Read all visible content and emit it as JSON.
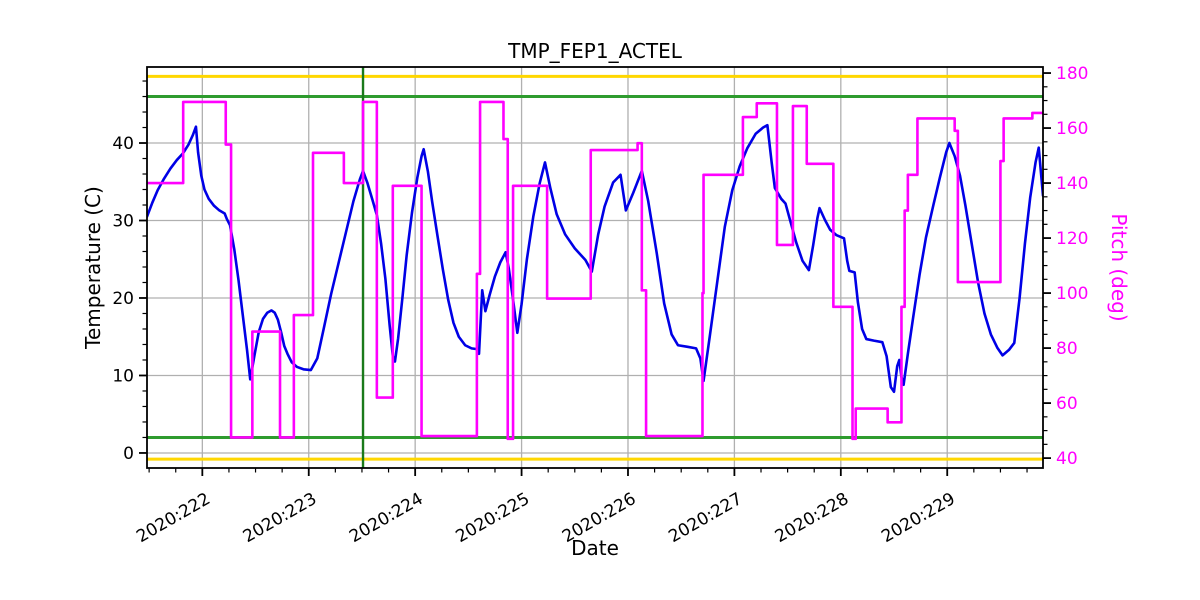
{
  "chart_data": {
    "type": "line",
    "title": "TMP_FEP1_ACTEL",
    "xlabel": "Date",
    "ylabel_left": "Temperature (C)",
    "ylabel_right": "Pitch (deg)",
    "x_axis": {
      "domain": [
        221.48,
        229.9
      ],
      "major_ticks": [
        222,
        223,
        224,
        225,
        226,
        227,
        228,
        229
      ],
      "tick_labels": [
        "2020:222",
        "2020:223",
        "2020:224",
        "2020:225",
        "2020:226",
        "2020:227",
        "2020:228",
        "2020:229"
      ],
      "minor_step": 0.25
    },
    "y_left": {
      "domain": [
        -1.94,
        49.81
      ],
      "major_ticks": [
        0,
        10,
        20,
        30,
        40
      ],
      "minor_step": 2,
      "color": "#000000"
    },
    "y_right": {
      "domain": [
        36.4,
        182.2
      ],
      "major_ticks": [
        40,
        60,
        80,
        100,
        120,
        140,
        160,
        180
      ],
      "minor_step": 5,
      "color": "#ff00ff"
    },
    "grid": {
      "show": true,
      "color": "#b0b0b0"
    },
    "colors": {
      "temperature": "#0000e6",
      "pitch": "#ff00ff",
      "yellow_limit": "#ffd700",
      "green_limit": "#2e9b2e",
      "vline": "#1a7a1a"
    },
    "limit_lines": [
      {
        "name": "yellow-high-limit",
        "axis": "left",
        "value": 48.6,
        "color": "#ffd700"
      },
      {
        "name": "yellow-low-limit",
        "axis": "left",
        "value": -0.8,
        "color": "#ffd700"
      },
      {
        "name": "green-high-limit",
        "axis": "left",
        "value": 46.0,
        "color": "#2e9b2e"
      },
      {
        "name": "green-low-limit",
        "axis": "left",
        "value": 2.0,
        "color": "#2e9b2e"
      }
    ],
    "vline": {
      "x": 223.51,
      "color": "#1a7a1a"
    },
    "series": [
      {
        "name": "temperature",
        "axis": "left",
        "style": "line",
        "color": "#0000e6",
        "points": [
          [
            221.48,
            30.5
          ],
          [
            221.53,
            32.3
          ],
          [
            221.58,
            33.9
          ],
          [
            221.64,
            35.4
          ],
          [
            221.7,
            36.7
          ],
          [
            221.76,
            37.8
          ],
          [
            221.82,
            38.7
          ],
          [
            221.87,
            39.8
          ],
          [
            221.91,
            41.0
          ],
          [
            221.94,
            42.1
          ],
          [
            221.96,
            38.8
          ],
          [
            221.99,
            35.8
          ],
          [
            222.02,
            34.0
          ],
          [
            222.06,
            32.8
          ],
          [
            222.11,
            31.9
          ],
          [
            222.16,
            31.3
          ],
          [
            222.21,
            30.9
          ],
          [
            222.23,
            30.2
          ],
          [
            222.26,
            29.4
          ],
          [
            222.3,
            26.3
          ],
          [
            222.34,
            22.3
          ],
          [
            222.38,
            17.8
          ],
          [
            222.42,
            13.3
          ],
          [
            222.45,
            9.5
          ],
          [
            222.49,
            12.6
          ],
          [
            222.53,
            15.6
          ],
          [
            222.57,
            17.3
          ],
          [
            222.61,
            18.1
          ],
          [
            222.65,
            18.4
          ],
          [
            222.68,
            18.1
          ],
          [
            222.71,
            17.2
          ],
          [
            222.74,
            15.6
          ],
          [
            222.77,
            13.8
          ],
          [
            222.8,
            12.8
          ],
          [
            222.84,
            11.7
          ],
          [
            222.89,
            11.1
          ],
          [
            222.95,
            10.8
          ],
          [
            223.02,
            10.7
          ],
          [
            223.08,
            12.2
          ],
          [
            223.14,
            16.0
          ],
          [
            223.21,
            20.5
          ],
          [
            223.28,
            24.5
          ],
          [
            223.35,
            28.5
          ],
          [
            223.42,
            32.5
          ],
          [
            223.48,
            35.3
          ],
          [
            223.51,
            36.4
          ],
          [
            223.55,
            34.9
          ],
          [
            223.6,
            32.6
          ],
          [
            223.64,
            30.7
          ],
          [
            223.68,
            27.0
          ],
          [
            223.72,
            22.5
          ],
          [
            223.76,
            16.5
          ],
          [
            223.79,
            12.5
          ],
          [
            223.81,
            11.8
          ],
          [
            223.84,
            14.8
          ],
          [
            223.88,
            20.0
          ],
          [
            223.92,
            25.5
          ],
          [
            223.97,
            31.0
          ],
          [
            224.02,
            35.5
          ],
          [
            224.06,
            38.3
          ],
          [
            224.08,
            39.2
          ],
          [
            224.12,
            36.3
          ],
          [
            224.16,
            32.4
          ],
          [
            224.21,
            28.0
          ],
          [
            224.26,
            23.7
          ],
          [
            224.31,
            19.8
          ],
          [
            224.36,
            16.8
          ],
          [
            224.41,
            15.0
          ],
          [
            224.47,
            13.9
          ],
          [
            224.53,
            13.5
          ],
          [
            224.58,
            13.4
          ],
          [
            224.6,
            12.8
          ],
          [
            224.63,
            21.0
          ],
          [
            224.66,
            18.3
          ],
          [
            224.7,
            20.4
          ],
          [
            224.75,
            22.8
          ],
          [
            224.8,
            24.6
          ],
          [
            224.85,
            25.9
          ],
          [
            224.88,
            23.8
          ],
          [
            224.92,
            19.8
          ],
          [
            224.96,
            15.5
          ],
          [
            225.0,
            19.2
          ],
          [
            225.05,
            25.0
          ],
          [
            225.11,
            30.5
          ],
          [
            225.17,
            34.8
          ],
          [
            225.22,
            37.5
          ],
          [
            225.27,
            34.2
          ],
          [
            225.33,
            30.8
          ],
          [
            225.41,
            28.2
          ],
          [
            225.5,
            26.4
          ],
          [
            225.6,
            24.9
          ],
          [
            225.66,
            23.4
          ],
          [
            225.72,
            28.2
          ],
          [
            225.78,
            31.8
          ],
          [
            225.86,
            34.9
          ],
          [
            225.93,
            35.9
          ],
          [
            225.98,
            31.3
          ],
          [
            226.05,
            33.6
          ],
          [
            226.13,
            36.4
          ],
          [
            226.19,
            32.5
          ],
          [
            226.27,
            25.8
          ],
          [
            226.34,
            19.3
          ],
          [
            226.41,
            15.3
          ],
          [
            226.47,
            13.9
          ],
          [
            226.56,
            13.7
          ],
          [
            226.64,
            13.5
          ],
          [
            226.68,
            12.2
          ],
          [
            226.71,
            9.3
          ],
          [
            226.77,
            15.2
          ],
          [
            226.84,
            22.2
          ],
          [
            226.91,
            29.2
          ],
          [
            226.98,
            33.9
          ],
          [
            227.05,
            37.0
          ],
          [
            227.12,
            39.3
          ],
          [
            227.2,
            41.2
          ],
          [
            227.27,
            42.0
          ],
          [
            227.31,
            42.3
          ],
          [
            227.35,
            37.5
          ],
          [
            227.38,
            34.2
          ],
          [
            227.44,
            32.8
          ],
          [
            227.48,
            32.2
          ],
          [
            227.53,
            29.7
          ],
          [
            227.58,
            27.2
          ],
          [
            227.64,
            24.8
          ],
          [
            227.7,
            23.6
          ],
          [
            227.74,
            26.8
          ],
          [
            227.78,
            30.3
          ],
          [
            227.8,
            31.6
          ],
          [
            227.85,
            30.1
          ],
          [
            227.9,
            28.8
          ],
          [
            227.96,
            28.1
          ],
          [
            228.03,
            27.7
          ],
          [
            228.06,
            24.8
          ],
          [
            228.08,
            23.5
          ],
          [
            228.13,
            23.3
          ],
          [
            228.16,
            19.5
          ],
          [
            228.2,
            16.0
          ],
          [
            228.24,
            14.7
          ],
          [
            228.31,
            14.5
          ],
          [
            228.39,
            14.3
          ],
          [
            228.43,
            12.5
          ],
          [
            228.47,
            8.5
          ],
          [
            228.5,
            7.9
          ],
          [
            228.53,
            11.2
          ],
          [
            228.55,
            12.0
          ],
          [
            228.57,
            9.8
          ],
          [
            228.59,
            8.8
          ],
          [
            228.63,
            12.8
          ],
          [
            228.68,
            17.5
          ],
          [
            228.74,
            23.0
          ],
          [
            228.8,
            27.8
          ],
          [
            228.87,
            32.0
          ],
          [
            228.93,
            35.5
          ],
          [
            228.99,
            38.8
          ],
          [
            229.02,
            40.0
          ],
          [
            229.07,
            38.3
          ],
          [
            229.12,
            35.8
          ],
          [
            229.17,
            32.0
          ],
          [
            229.23,
            27.0
          ],
          [
            229.29,
            22.0
          ],
          [
            229.35,
            18.0
          ],
          [
            229.41,
            15.3
          ],
          [
            229.47,
            13.6
          ],
          [
            229.52,
            12.6
          ],
          [
            229.58,
            13.3
          ],
          [
            229.63,
            14.2
          ],
          [
            229.68,
            20.0
          ],
          [
            229.73,
            27.0
          ],
          [
            229.78,
            33.0
          ],
          [
            229.83,
            37.5
          ],
          [
            229.86,
            39.4
          ],
          [
            229.9,
            33.2
          ]
        ]
      },
      {
        "name": "pitch",
        "axis": "right",
        "style": "step",
        "color": "#ff00ff",
        "x_end": 229.9,
        "points": [
          [
            221.48,
            140
          ],
          [
            221.82,
            169.5
          ],
          [
            222.22,
            154
          ],
          [
            222.27,
            47.5
          ],
          [
            222.47,
            86
          ],
          [
            222.73,
            47.5
          ],
          [
            222.86,
            92
          ],
          [
            223.04,
            151
          ],
          [
            223.33,
            140
          ],
          [
            223.51,
            169.5
          ],
          [
            223.64,
            62
          ],
          [
            223.79,
            139
          ],
          [
            224.06,
            48
          ],
          [
            224.58,
            107
          ],
          [
            224.61,
            169.5
          ],
          [
            224.83,
            156
          ],
          [
            224.87,
            47
          ],
          [
            224.92,
            139
          ],
          [
            225.24,
            98
          ],
          [
            225.65,
            152
          ],
          [
            226.09,
            154.5
          ],
          [
            226.13,
            101
          ],
          [
            226.17,
            48
          ],
          [
            226.7,
            100
          ],
          [
            226.71,
            143
          ],
          [
            227.08,
            164
          ],
          [
            227.21,
            169
          ],
          [
            227.4,
            117.5
          ],
          [
            227.55,
            168
          ],
          [
            227.68,
            147
          ],
          [
            227.93,
            95
          ],
          [
            228.11,
            47
          ],
          [
            228.14,
            58
          ],
          [
            228.44,
            53
          ],
          [
            228.57,
            95
          ],
          [
            228.6,
            130
          ],
          [
            228.63,
            143
          ],
          [
            228.72,
            163.5
          ],
          [
            229.07,
            159
          ],
          [
            229.1,
            104
          ],
          [
            229.5,
            148
          ],
          [
            229.53,
            163.5
          ],
          [
            229.8,
            165.5
          ]
        ]
      }
    ]
  }
}
